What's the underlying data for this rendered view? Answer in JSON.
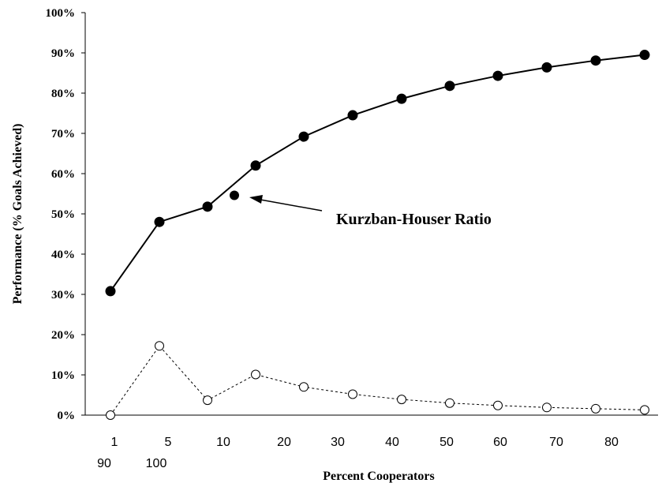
{
  "chart_data": {
    "type": "line",
    "xlabel": "Percent Cooperators",
    "ylabel": "Performance (% Goals Achieved)",
    "ylim": [
      0,
      100
    ],
    "y_ticks": [
      "0%",
      "10%",
      "20%",
      "30%",
      "40%",
      "50%",
      "60%",
      "70%",
      "80%",
      "90%",
      "100%"
    ],
    "x_tick_labels_row1": [
      "1",
      "5",
      "10",
      "20",
      "30",
      "40",
      "50",
      "60",
      "70",
      "80"
    ],
    "x_tick_labels_row2": [
      "90",
      "100"
    ],
    "grid": false,
    "series": [
      {
        "style": "solid-filled",
        "values": [
          30.8,
          48.0,
          51.8,
          62.0,
          69.2,
          74.5,
          78.6,
          81.8,
          84.3,
          86.4,
          88.1,
          89.5
        ]
      },
      {
        "style": "dashed-open",
        "values": [
          0.0,
          17.2,
          3.7,
          10.1,
          7.0,
          5.2,
          3.9,
          3.0,
          2.4,
          1.9,
          1.6,
          1.3
        ]
      }
    ],
    "highlight_point": {
      "y": 54.6
    },
    "annotation": {
      "text": "Kurzban-Houser Ratio"
    }
  }
}
